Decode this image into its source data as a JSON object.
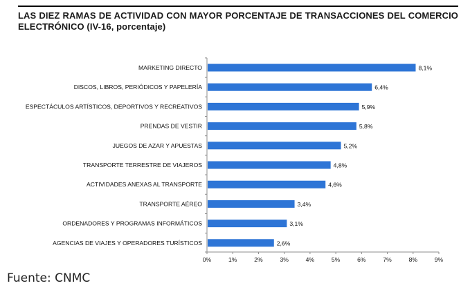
{
  "chart_data": {
    "type": "bar",
    "orientation": "horizontal",
    "title": "LAS DIEZ RAMAS DE ACTIVIDAD CON MAYOR PORCENTAJE DE TRANSACCIONES DEL COMERCIO ELECTRÓNICO (IV-16, porcentaje)",
    "categories": [
      "MARKETING DIRECTO",
      "DISCOS, LIBROS, PERIÓDICOS Y PAPELERÍA",
      "ESPECTÁCULOS ARTÍSTICOS, DEPORTIVOS Y RECREATIVOS",
      "PRENDAS DE VESTIR",
      "JUEGOS DE AZAR Y APUESTAS",
      "TRANSPORTE TERRESTRE DE VIAJEROS",
      "ACTIVIDADES ANEXAS AL TRANSPORTE",
      "TRANSPORTE AÉREO",
      "ORDENADORES Y PROGRAMAS INFORMÁTICOS",
      "AGENCIAS DE VIAJES Y OPERADORES TURÍSTICOS"
    ],
    "values": [
      8.1,
      6.4,
      5.9,
      5.8,
      5.2,
      4.8,
      4.6,
      3.4,
      3.1,
      2.6
    ],
    "value_labels": [
      "8,1%",
      "6,4%",
      "5,9%",
      "5,8%",
      "5,2%",
      "4,8%",
      "4,6%",
      "3,4%",
      "3,1%",
      "2,6%"
    ],
    "xlim": [
      0,
      9
    ],
    "x_ticks": [
      "0%",
      "1%",
      "2%",
      "3%",
      "4%",
      "5%",
      "6%",
      "7%",
      "8%",
      "9%"
    ],
    "bar_color": "#2E75D6",
    "grid": false,
    "legend": "none"
  },
  "footer": "Fuente: CNMC"
}
